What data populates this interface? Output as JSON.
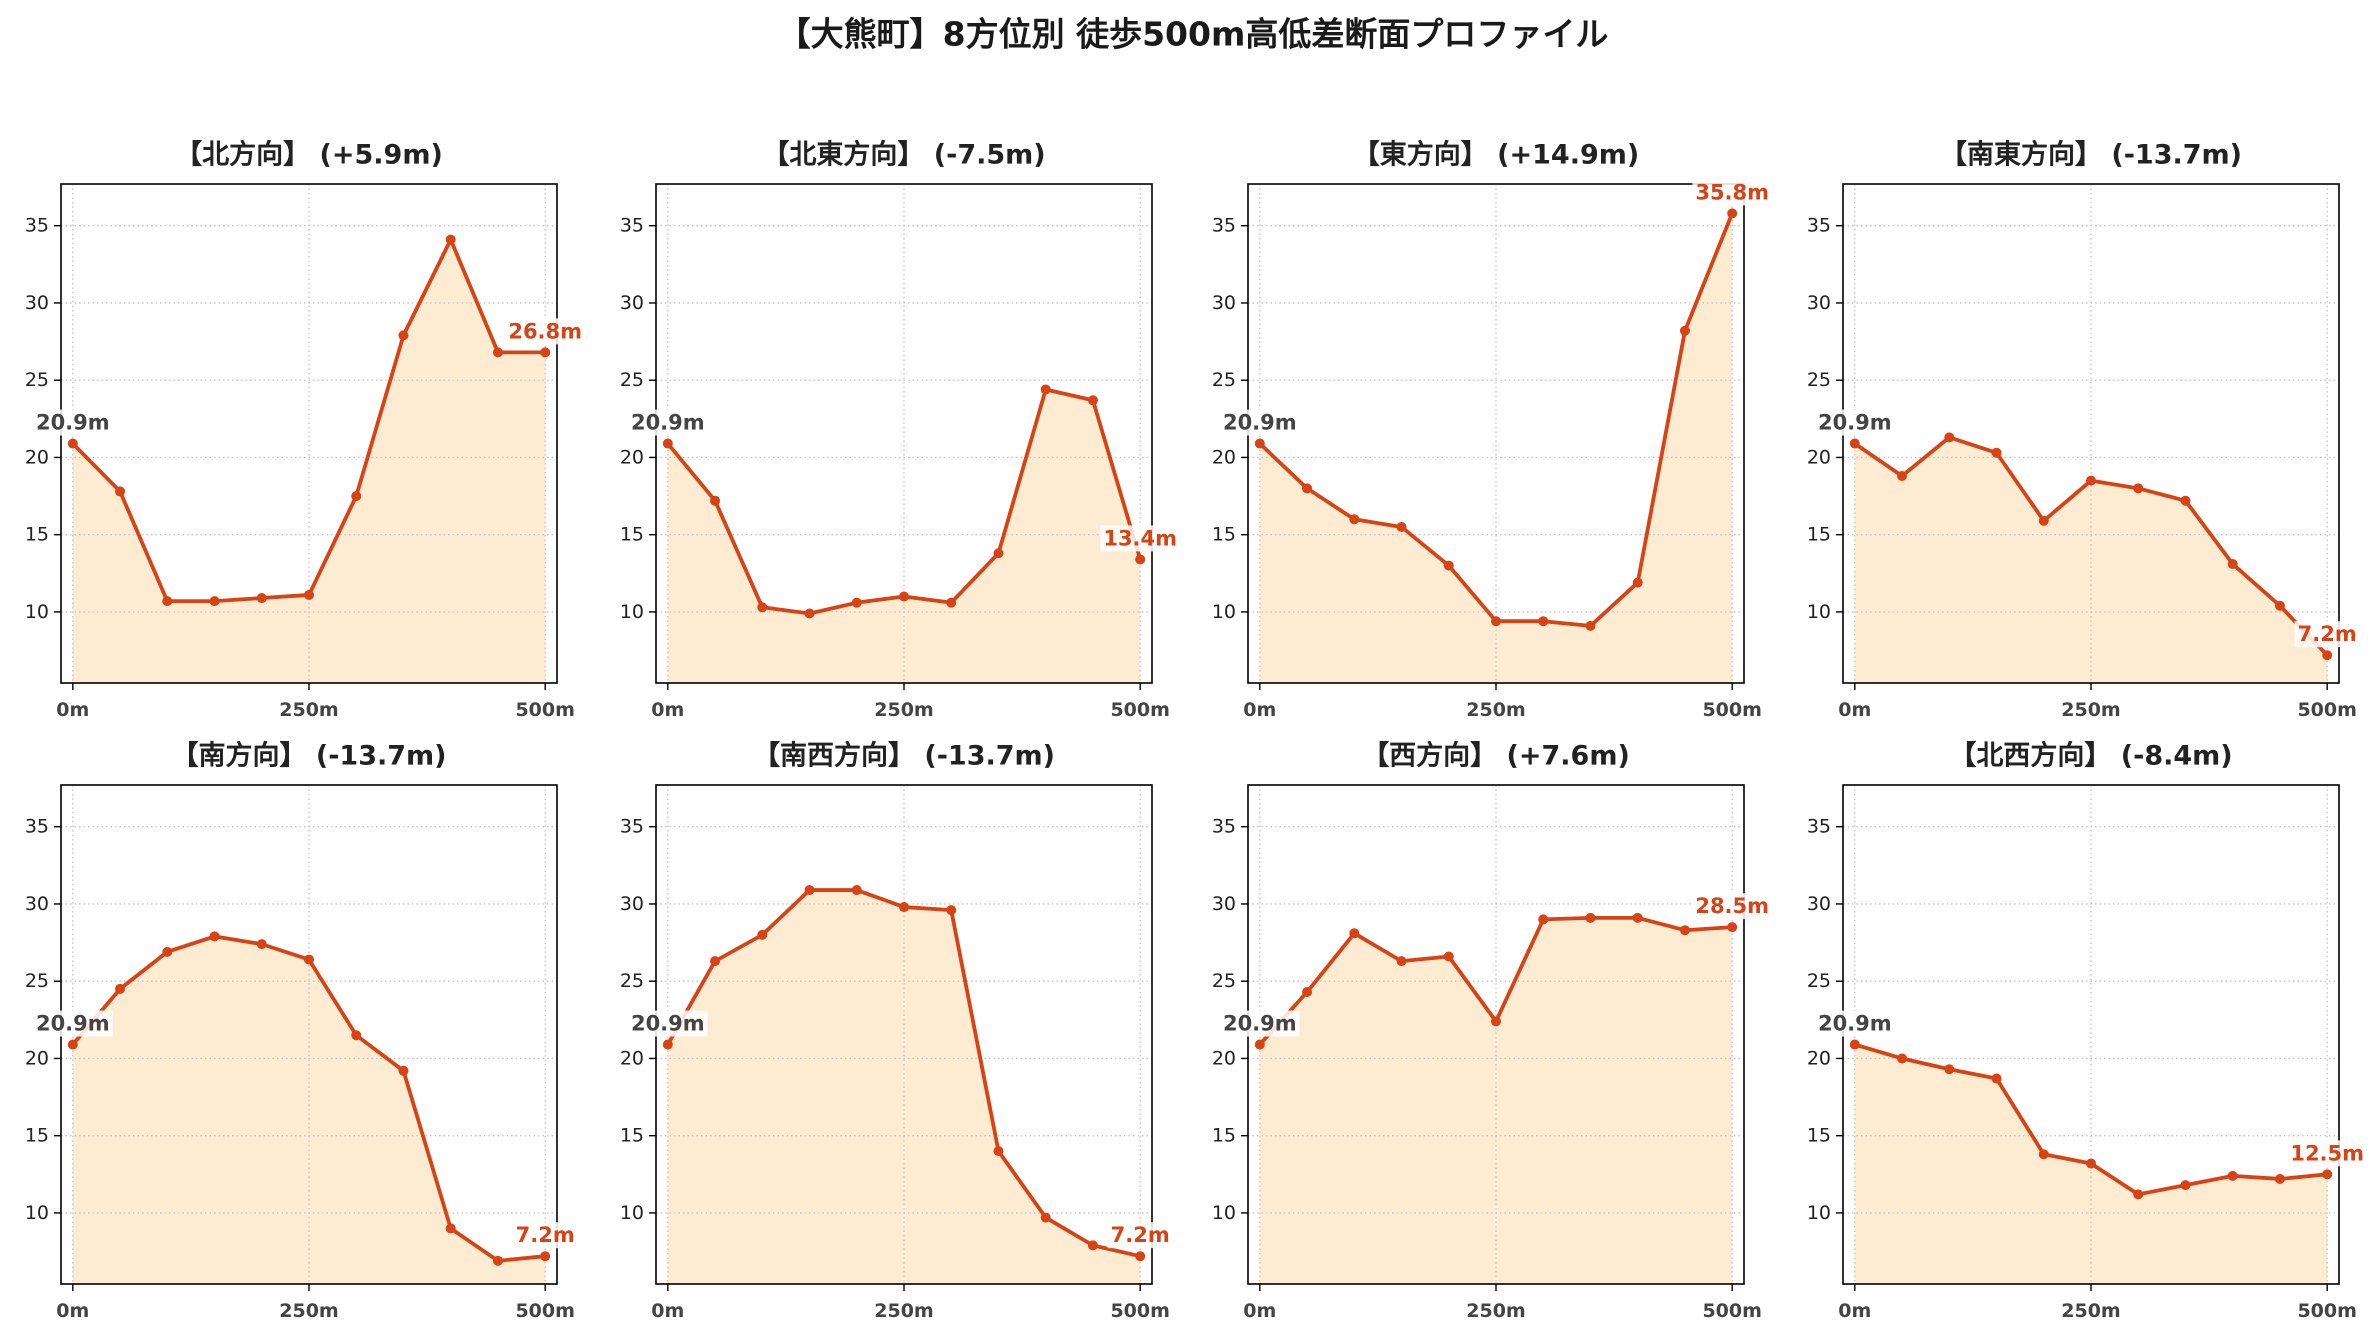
{
  "chart_data": {
    "type": "line",
    "title": "【大熊町】8方位別 徒歩500m高低差断面プロファイル",
    "x": [
      0,
      50,
      100,
      150,
      200,
      250,
      300,
      350,
      400,
      450,
      500
    ],
    "x_ticks": [
      0,
      250,
      500
    ],
    "x_tick_labels": [
      "0m",
      "250m",
      "500m"
    ],
    "y_ticks": [
      10,
      15,
      20,
      25,
      30,
      35
    ],
    "xlim": [
      -12.5,
      512.5
    ],
    "ylim": [
      5.4,
      37.7
    ],
    "grid": true,
    "panels": [
      {
        "title": "【北方向】 (+5.9m)",
        "values": [
          20.9,
          17.8,
          10.7,
          10.7,
          10.9,
          11.1,
          17.5,
          27.9,
          34.1,
          26.8,
          26.8
        ],
        "start_label": "20.9m",
        "end_label": "26.8m"
      },
      {
        "title": "【北東方向】 (-7.5m)",
        "values": [
          20.9,
          17.2,
          10.3,
          9.9,
          10.6,
          11.0,
          10.6,
          13.8,
          24.4,
          23.7,
          13.4
        ],
        "start_label": "20.9m",
        "end_label": "13.4m"
      },
      {
        "title": "【東方向】 (+14.9m)",
        "values": [
          20.9,
          18.0,
          16.0,
          15.5,
          13.0,
          9.4,
          9.4,
          9.1,
          11.9,
          28.2,
          35.8
        ],
        "start_label": "20.9m",
        "end_label": "35.8m"
      },
      {
        "title": "【南東方向】 (-13.7m)",
        "values": [
          20.9,
          18.8,
          21.3,
          20.3,
          15.9,
          18.5,
          18.0,
          17.2,
          13.1,
          10.4,
          7.2
        ],
        "start_label": "20.9m",
        "end_label": "7.2m"
      },
      {
        "title": "【南方向】 (-13.7m)",
        "values": [
          20.9,
          24.5,
          26.9,
          27.9,
          27.4,
          26.4,
          21.5,
          19.2,
          9.0,
          6.9,
          7.2
        ],
        "start_label": "20.9m",
        "end_label": "7.2m"
      },
      {
        "title": "【南西方向】 (-13.7m)",
        "values": [
          20.9,
          26.3,
          28.0,
          30.9,
          30.9,
          29.8,
          29.6,
          14.0,
          9.7,
          7.9,
          7.2
        ],
        "start_label": "20.9m",
        "end_label": "7.2m"
      },
      {
        "title": "【西方向】 (+7.6m)",
        "values": [
          20.9,
          24.3,
          28.1,
          26.3,
          26.6,
          22.4,
          29.0,
          29.1,
          29.1,
          28.3,
          28.5
        ],
        "start_label": "20.9m",
        "end_label": "28.5m"
      },
      {
        "title": "【北西方向】 (-8.4m)",
        "values": [
          20.9,
          20.0,
          19.3,
          18.7,
          13.8,
          13.2,
          11.2,
          11.8,
          12.4,
          12.2,
          12.5
        ],
        "start_label": "20.9m",
        "end_label": "12.5m"
      }
    ]
  },
  "colors": {
    "line": "#D84315",
    "fill": "#FEECD2",
    "grid": "#C4C4C4",
    "frame": "#000000",
    "start_label": "#444444",
    "end_label": "#D84315"
  }
}
